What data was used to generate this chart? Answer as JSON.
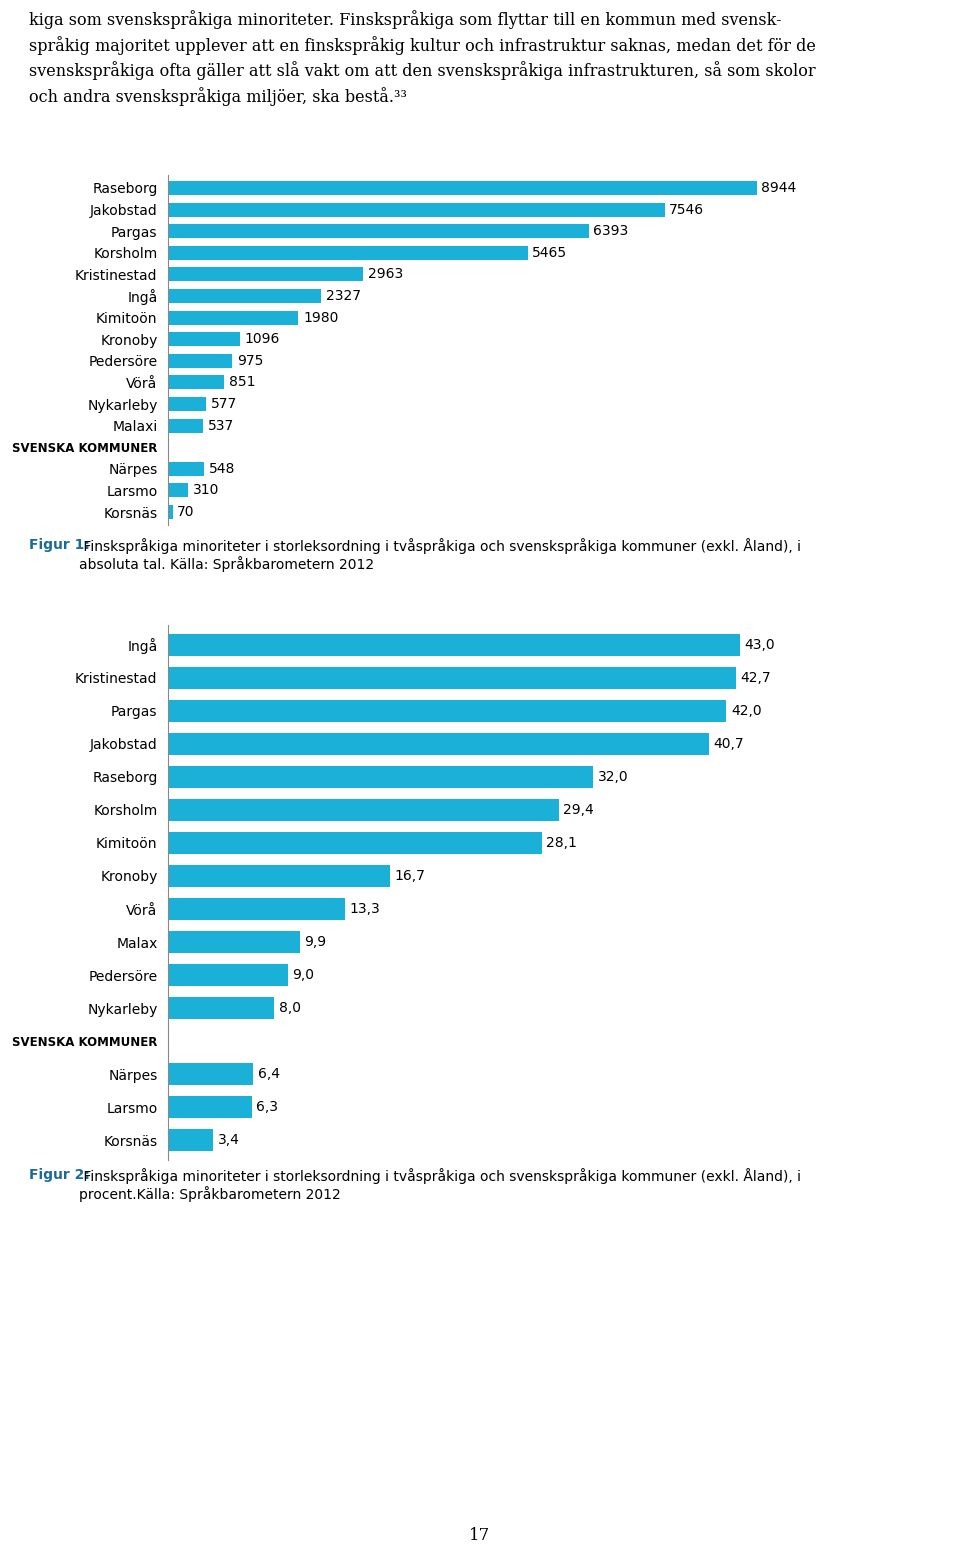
{
  "text_lines": [
    "kiga som svenskspråkiga minoriteter. Finskspråkiga som flyttar till en kommun med svensk-",
    "språkig majoritet upplever att en finskspråkig kultur och infrastruktur saknas, medan det för de",
    "svenskspråkiga ofta gäller att slå vakt om att den svenskspråkiga infrastrukturen, så som skolor",
    "och andra svenskspråkiga miljöer, ska bestå.³³"
  ],
  "chart1_categories": [
    "Raseborg",
    "Jakobstad",
    "Pargas",
    "Korsholm",
    "Kristinestad",
    "Ingå",
    "Kimitoön",
    "Kronoby",
    "Pedersöre",
    "Vörå",
    "Nykarleby",
    "Malaxi",
    "SVENSKA KOMMUNER",
    "Närpes",
    "Larsmo",
    "Korsnäs"
  ],
  "chart1_values": [
    8944,
    7546,
    6393,
    5465,
    2963,
    2327,
    1980,
    1096,
    975,
    851,
    577,
    537,
    0,
    548,
    310,
    70
  ],
  "chart1_is_separator": [
    false,
    false,
    false,
    false,
    false,
    false,
    false,
    false,
    false,
    false,
    false,
    false,
    true,
    false,
    false,
    false
  ],
  "chart1_caption_bold": "Figur 1:",
  "chart1_caption_rest": " Finskspråkiga minoriteter i storleksordning i tvåspråkiga och svenskspråkiga kommuner (exkl. Åland), i\nabsoluta tal. Källa: Språkbarometern 2012",
  "chart2_categories": [
    "Ingå",
    "Kristinestad",
    "Pargas",
    "Jakobstad",
    "Raseborg",
    "Korsholm",
    "Kimitoön",
    "Kronoby",
    "Vörå",
    "Malax",
    "Pedersöre",
    "Nykarleby",
    "SVENSKA KOMMUNER",
    "Närpes",
    "Larsmo",
    "Korsnäs"
  ],
  "chart2_values": [
    43.0,
    42.7,
    42.0,
    40.7,
    32.0,
    29.4,
    28.1,
    16.7,
    13.3,
    9.9,
    9.0,
    8.0,
    0,
    6.4,
    6.3,
    3.4
  ],
  "chart2_is_separator": [
    false,
    false,
    false,
    false,
    false,
    false,
    false,
    false,
    false,
    false,
    false,
    false,
    true,
    false,
    false,
    false
  ],
  "chart2_caption_bold": "Figur 2:",
  "chart2_caption_rest": " Finskspråkiga minoriteter i storleksordning i tvåspråkiga och svenskspråkiga kommuner (exkl. Åland), i\nprocent.Källa: Språkbarometern 2012",
  "bar_color": "#1ab0d8",
  "background_color": "#ffffff",
  "text_color": "#000000",
  "caption_color_bold": "#1a6b9a",
  "text_fontsize": 11.5,
  "label_fontsize": 10,
  "value_fontsize": 10,
  "caption_fontsize": 10,
  "page_number": "17"
}
